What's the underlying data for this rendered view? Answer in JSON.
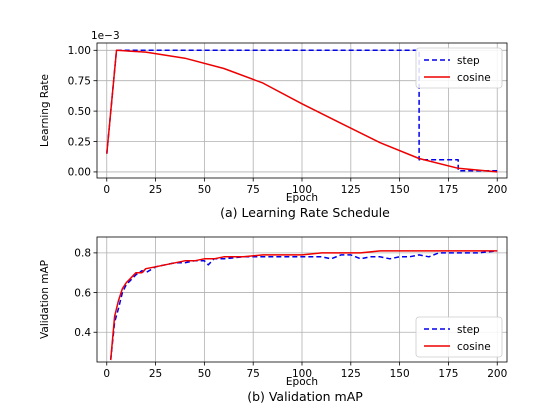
{
  "chart_data": [
    {
      "type": "line",
      "caption": "(a) Learning Rate Schedule",
      "xlabel": "Epoch",
      "ylabel": "Learning Rate",
      "scale_label": "1e−3",
      "xlim": [
        -5,
        205
      ],
      "ylim": [
        -0.05,
        1.06
      ],
      "xticks": [
        0,
        25,
        50,
        75,
        100,
        125,
        150,
        175,
        200
      ],
      "yticks": [
        0.0,
        0.25,
        0.5,
        0.75,
        1.0
      ],
      "ytick_labels": [
        "0.00",
        "0.25",
        "0.50",
        "0.75",
        "1.00"
      ],
      "grid": true,
      "legend_position": "top-right",
      "series": [
        {
          "name": "step",
          "color": "#0000ee",
          "dash": true,
          "x": [
            0,
            5,
            160,
            160,
            180,
            180,
            200
          ],
          "y": [
            0.15,
            1.0,
            1.0,
            0.1,
            0.1,
            0.01,
            0.01
          ]
        },
        {
          "name": "cosine",
          "color": "#ee0000",
          "dash": false,
          "x": [
            0,
            5,
            20,
            40,
            60,
            80,
            100,
            120,
            140,
            160,
            180,
            200
          ],
          "y": [
            0.15,
            1.0,
            0.985,
            0.935,
            0.85,
            0.73,
            0.56,
            0.4,
            0.24,
            0.11,
            0.03,
            0.0
          ]
        }
      ]
    },
    {
      "type": "line",
      "caption": "(b) Validation mAP",
      "xlabel": "Epoch",
      "ylabel": "Validation mAP",
      "xlim": [
        -5,
        205
      ],
      "ylim": [
        0.25,
        0.88
      ],
      "xticks": [
        0,
        25,
        50,
        75,
        100,
        125,
        150,
        175,
        200
      ],
      "yticks": [
        0.4,
        0.6,
        0.8
      ],
      "ytick_labels": [
        "0.4",
        "0.6",
        "0.8"
      ],
      "grid": true,
      "legend_position": "bottom-right",
      "series": [
        {
          "name": "step",
          "color": "#0000ee",
          "dash": true,
          "x": [
            2,
            4,
            6,
            8,
            10,
            12,
            15,
            18,
            20,
            25,
            30,
            35,
            40,
            45,
            50,
            52,
            55,
            60,
            70,
            80,
            90,
            100,
            110,
            115,
            120,
            125,
            130,
            135,
            140,
            145,
            150,
            155,
            160,
            165,
            170,
            180,
            190,
            200
          ],
          "y": [
            0.26,
            0.45,
            0.52,
            0.6,
            0.64,
            0.66,
            0.69,
            0.71,
            0.7,
            0.73,
            0.74,
            0.75,
            0.75,
            0.76,
            0.76,
            0.74,
            0.77,
            0.77,
            0.78,
            0.78,
            0.78,
            0.78,
            0.78,
            0.77,
            0.79,
            0.79,
            0.77,
            0.78,
            0.78,
            0.77,
            0.78,
            0.78,
            0.79,
            0.78,
            0.8,
            0.8,
            0.8,
            0.81
          ]
        },
        {
          "name": "cosine",
          "color": "#ee0000",
          "dash": false,
          "x": [
            2,
            4,
            6,
            8,
            10,
            12,
            15,
            18,
            20,
            25,
            30,
            35,
            40,
            45,
            50,
            55,
            60,
            70,
            80,
            90,
            100,
            110,
            120,
            130,
            140,
            150,
            160,
            170,
            180,
            190,
            200
          ],
          "y": [
            0.26,
            0.48,
            0.56,
            0.62,
            0.65,
            0.67,
            0.7,
            0.7,
            0.72,
            0.73,
            0.74,
            0.75,
            0.76,
            0.76,
            0.77,
            0.77,
            0.78,
            0.78,
            0.79,
            0.79,
            0.79,
            0.8,
            0.8,
            0.8,
            0.81,
            0.81,
            0.81,
            0.81,
            0.81,
            0.81,
            0.81
          ]
        }
      ]
    }
  ]
}
